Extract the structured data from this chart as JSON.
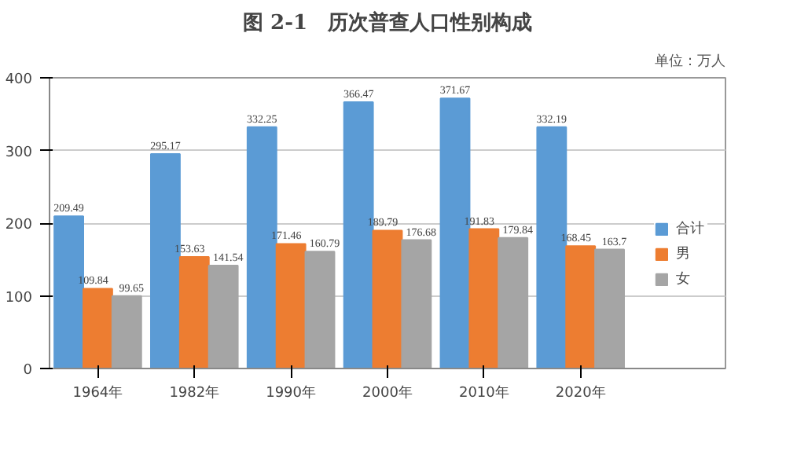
{
  "chart_data": {
    "type": "bar",
    "title": "图 2-1　历次普查人口性别构成",
    "subtitle": "单位：万人",
    "categories": [
      "1964年",
      "1982年",
      "1990年",
      "2000年",
      "2010年",
      "2020年"
    ],
    "series": [
      {
        "name": "合计",
        "color": "#5b9bd5",
        "values": [
          209.49,
          295.17,
          332.25,
          366.47,
          371.67,
          332.19
        ]
      },
      {
        "name": "男",
        "color": "#ed7d31",
        "values": [
          109.84,
          153.63,
          171.46,
          189.79,
          191.83,
          168.45
        ]
      },
      {
        "name": "女",
        "color": "#a5a5a5",
        "values": [
          99.65,
          141.54,
          160.79,
          176.68,
          179.84,
          163.7
        ]
      }
    ],
    "ylim": [
      0,
      400
    ],
    "yticks": [
      0,
      100,
      200,
      300,
      400
    ],
    "grid": "y",
    "legend": "right",
    "data_labels": true
  }
}
